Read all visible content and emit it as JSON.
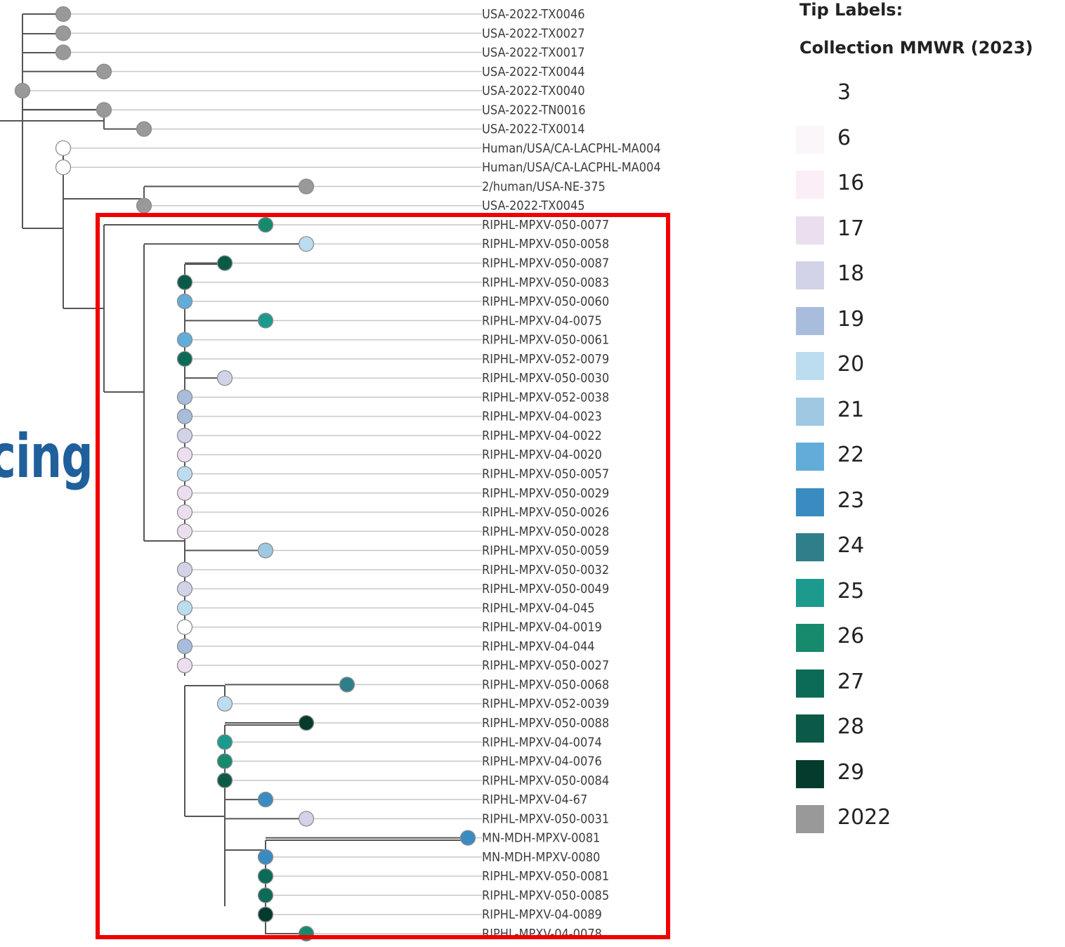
{
  "background_text": "cing",
  "legend": {
    "title": "Tip Labels:",
    "subtitle": "Collection MMWR (2023)",
    "items": [
      {
        "label": "3",
        "color": "#ffffff"
      },
      {
        "label": "6",
        "color": "#fbf6fa"
      },
      {
        "label": "16",
        "color": "#fbeef6"
      },
      {
        "label": "17",
        "color": "#ebdfef"
      },
      {
        "label": "18",
        "color": "#d2d3e8"
      },
      {
        "label": "19",
        "color": "#a8bcdb"
      },
      {
        "label": "20",
        "color": "#bcdcef"
      },
      {
        "label": "21",
        "color": "#9fc9e3"
      },
      {
        "label": "22",
        "color": "#62acd9"
      },
      {
        "label": "23",
        "color": "#3a8cc0"
      },
      {
        "label": "24",
        "color": "#2f7f8b"
      },
      {
        "label": "25",
        "color": "#1d9a8e"
      },
      {
        "label": "26",
        "color": "#178a6e"
      },
      {
        "label": "27",
        "color": "#0c6b56"
      },
      {
        "label": "28",
        "color": "#0b5a47"
      },
      {
        "label": "29",
        "color": "#053b2d"
      },
      {
        "label": "2022",
        "color": "#999999"
      }
    ]
  },
  "tips": [
    {
      "label": "USA-2022-TX0046",
      "group": "2022"
    },
    {
      "label": "USA-2022-TX0027",
      "group": "2022"
    },
    {
      "label": "USA-2022-TX0017",
      "group": "2022"
    },
    {
      "label": "USA-2022-TX0044",
      "group": "2022"
    },
    {
      "label": "USA-2022-TX0040",
      "group": "2022"
    },
    {
      "label": "USA-2022-TN0016",
      "group": "2022"
    },
    {
      "label": "USA-2022-TX0014",
      "group": "2022"
    },
    {
      "label": "Human/USA/CA-LACPHL-MA004",
      "group": "3"
    },
    {
      "label": "Human/USA/CA-LACPHL-MA004",
      "group": "3"
    },
    {
      "label": "2/human/USA-NE-375",
      "group": "2022"
    },
    {
      "label": "USA-2022-TX0045",
      "group": "2022"
    },
    {
      "label": "RIPHL-MPXV-050-0077",
      "group": "26"
    },
    {
      "label": "RIPHL-MPXV-050-0058",
      "group": "20"
    },
    {
      "label": "RIPHL-MPXV-050-0087",
      "group": "28"
    },
    {
      "label": "RIPHL-MPXV-050-0083",
      "group": "28"
    },
    {
      "label": "RIPHL-MPXV-050-0060",
      "group": "22"
    },
    {
      "label": "RIPHL-MPXV-04-0075",
      "group": "25"
    },
    {
      "label": "RIPHL-MPXV-050-0061",
      "group": "22"
    },
    {
      "label": "RIPHL-MPXV-052-0079",
      "group": "27"
    },
    {
      "label": "RIPHL-MPXV-050-0030",
      "group": "18"
    },
    {
      "label": "RIPHL-MPXV-052-0038",
      "group": "19"
    },
    {
      "label": "RIPHL-MPXV-04-0023",
      "group": "19"
    },
    {
      "label": "RIPHL-MPXV-04-0022",
      "group": "18"
    },
    {
      "label": "RIPHL-MPXV-04-0020",
      "group": "17"
    },
    {
      "label": "RIPHL-MPXV-050-0057",
      "group": "20"
    },
    {
      "label": "RIPHL-MPXV-050-0029",
      "group": "17"
    },
    {
      "label": "RIPHL-MPXV-050-0026",
      "group": "17"
    },
    {
      "label": "RIPHL-MPXV-050-0028",
      "group": "17"
    },
    {
      "label": "RIPHL-MPXV-050-0059",
      "group": "21"
    },
    {
      "label": "RIPHL-MPXV-050-0032",
      "group": "18"
    },
    {
      "label": "RIPHL-MPXV-050-0049",
      "group": "18"
    },
    {
      "label": "RIPHL-MPXV-04-045",
      "group": "20"
    },
    {
      "label": "RIPHL-MPXV-04-0019",
      "group": "3"
    },
    {
      "label": "RIPHL-MPXV-04-044",
      "group": "19"
    },
    {
      "label": "RIPHL-MPXV-050-0027",
      "group": "17"
    },
    {
      "label": "RIPHL-MPXV-050-0068",
      "group": "24"
    },
    {
      "label": "RIPHL-MPXV-052-0039",
      "group": "20"
    },
    {
      "label": "RIPHL-MPXV-050-0088",
      "group": "29"
    },
    {
      "label": "RIPHL-MPXV-04-0074",
      "group": "25"
    },
    {
      "label": "RIPHL-MPXV-04-0076",
      "group": "26"
    },
    {
      "label": "RIPHL-MPXV-050-0084",
      "group": "28"
    },
    {
      "label": "RIPHL-MPXV-04-67",
      "group": "23"
    },
    {
      "label": "RIPHL-MPXV-050-0031",
      "group": "18"
    },
    {
      "label": "MN-MDH-MPXV-0081",
      "group": "23"
    },
    {
      "label": "MN-MDH-MPXV-0080",
      "group": "23"
    },
    {
      "label": "RIPHL-MPXV-050-0081",
      "group": "27"
    },
    {
      "label": "RIPHL-MPXV-050-0085",
      "group": "27"
    },
    {
      "label": "RIPHL-MPXV-04-0089",
      "group": "29"
    },
    {
      "label": "RIPHL-MPXV-04-0078",
      "group": "26"
    }
  ]
}
